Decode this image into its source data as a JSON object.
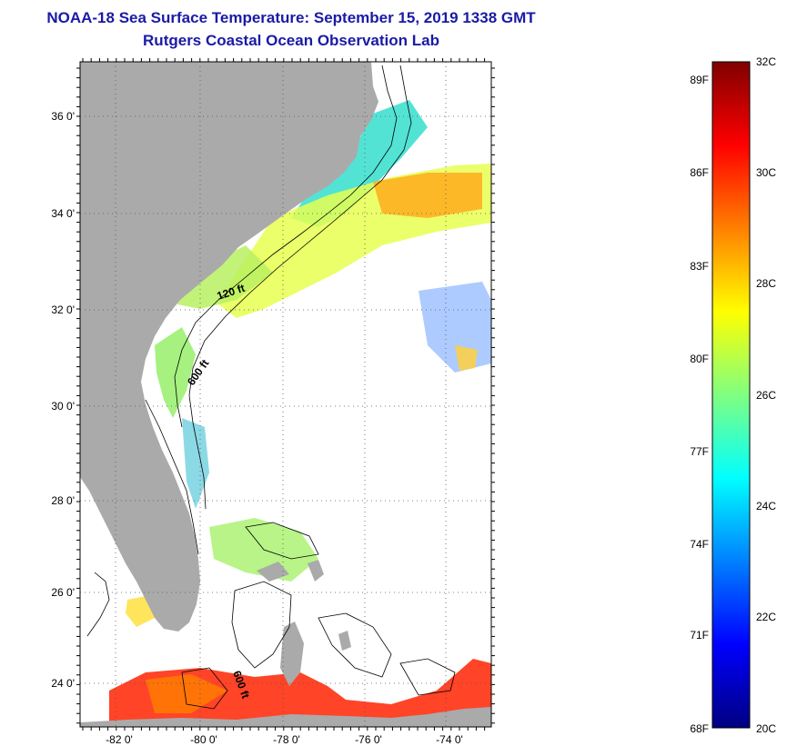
{
  "title": "NOAA-18 Sea Surface Temperature:  September 15, 2019 1338 GMT",
  "subtitle": "Rutgers Coastal Ocean Observation Lab",
  "map": {
    "lat_labels": [
      "36 0'",
      "34 0'",
      "32 0'",
      "30 0'",
      "28 0'",
      "26 0'",
      "24 0'"
    ],
    "lon_labels": [
      "-82 0'",
      "-80 0'",
      "-78 0'",
      "-76 0'",
      "-74 0'"
    ],
    "contours": [
      "120 ft",
      "600 ft",
      "600 ft"
    ]
  },
  "colorbar": {
    "f_labels": [
      "89F",
      "86F",
      "83F",
      "80F",
      "77F",
      "74F",
      "71F",
      "68F"
    ],
    "c_labels": [
      "32C",
      "30C",
      "28C",
      "26C",
      "24C",
      "22C",
      "20C"
    ],
    "colors": [
      "#800000",
      "#ff0000",
      "#ff8000",
      "#ffff00",
      "#80ff80",
      "#00ffff",
      "#0080ff",
      "#0000ff",
      "#000080"
    ]
  }
}
